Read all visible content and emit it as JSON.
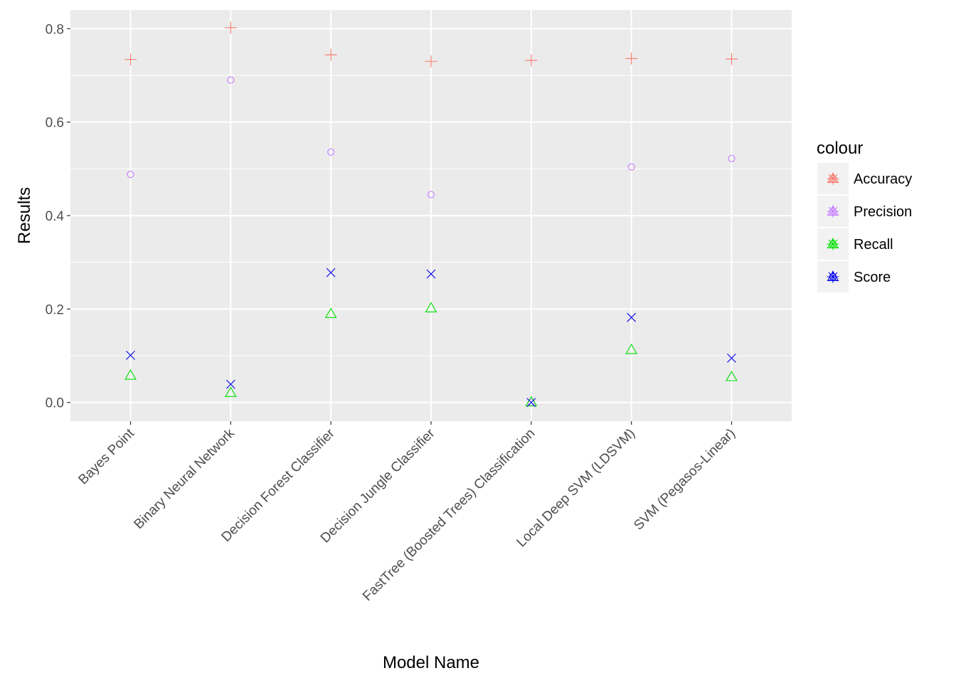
{
  "chart_data": {
    "type": "scatter",
    "title": "",
    "xlabel": "Model Name",
    "ylabel": "Results",
    "categories": [
      "Bayes Point",
      "Binary Neural Network",
      "Decision Forest Classifier",
      "Decision Jungle Classifier",
      "FastTree (Boosted Trees) Classification",
      "Local Deep SVM (LDSVM)",
      "SVM (Pegasos-Linear)"
    ],
    "ylim": [
      -0.04,
      0.84
    ],
    "yticks": [
      0.0,
      0.2,
      0.4,
      0.6,
      0.8
    ],
    "ytick_labels": [
      "0.0",
      "0.2",
      "0.4",
      "0.6",
      "0.8"
    ],
    "grid": true,
    "legend": {
      "title": "colour",
      "position": "right"
    },
    "series": [
      {
        "name": "Accuracy",
        "color": "#F8766D",
        "marker": "plus",
        "values": [
          0.734,
          0.802,
          0.744,
          0.73,
          0.732,
          0.736,
          0.735
        ]
      },
      {
        "name": "Precision",
        "color": "#C77CFF",
        "marker": "circle",
        "values": [
          0.488,
          0.69,
          0.536,
          0.445,
          0.0,
          0.504,
          0.522
        ]
      },
      {
        "name": "Recall",
        "color": "#00E000",
        "marker": "triangle",
        "values": [
          0.058,
          0.021,
          0.19,
          0.202,
          0.001,
          0.113,
          0.055
        ]
      },
      {
        "name": "Score",
        "color": "#0000EE",
        "marker": "cross",
        "values": [
          0.101,
          0.039,
          0.278,
          0.275,
          0.0,
          0.182,
          0.095
        ]
      }
    ]
  }
}
